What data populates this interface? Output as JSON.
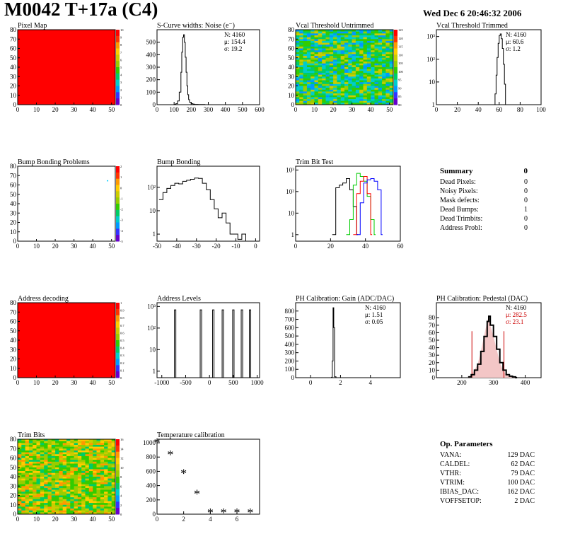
{
  "header": {
    "title": "M0042 T+17a (C4)",
    "date": "Wed Dec  6 20:46:32 2006"
  },
  "colors": {
    "map_red": "#ff0000",
    "hist_line": "#000000",
    "green_trim": "#00cc00",
    "blue_trim": "#0000ff",
    "red_trim": "#ff0000",
    "gain_mean_red": "#cc0000"
  },
  "chart_data": [
    {
      "id": "pixel-map",
      "type": "heatmap",
      "title": "Pixel Map",
      "xlim": [
        0,
        52
      ],
      "ylim": [
        0,
        80
      ],
      "xticks": [
        "0",
        "10",
        "20",
        "30",
        "40",
        "50"
      ],
      "yticks": [
        "0",
        "10",
        "20",
        "30",
        "40",
        "50",
        "60",
        "70",
        "80"
      ],
      "zticks": [
        "0",
        "1",
        "2",
        "3",
        "4",
        "5",
        "6",
        "7",
        "8",
        "9",
        "10"
      ],
      "fill": "uniform-max"
    },
    {
      "id": "scurve-noise",
      "type": "line",
      "title": "S-Curve widths: Noise (e⁻)",
      "xlim": [
        0,
        600
      ],
      "ylim": [
        0,
        600
      ],
      "xticks": [
        "0",
        "100",
        "200",
        "300",
        "400",
        "500",
        "600"
      ],
      "yticks": [
        "0",
        "100",
        "200",
        "300",
        "400",
        "500"
      ],
      "stats": [
        "N: 4160",
        "μ: 154.4",
        "σ: 19.2"
      ],
      "x": [
        80,
        100,
        110,
        120,
        130,
        140,
        145,
        150,
        155,
        160,
        165,
        170,
        175,
        180,
        185,
        190,
        200,
        210,
        220,
        240,
        260,
        280
      ],
      "y": [
        0,
        2,
        8,
        30,
        100,
        260,
        420,
        540,
        560,
        500,
        380,
        260,
        150,
        80,
        40,
        20,
        8,
        4,
        2,
        1,
        1,
        0
      ]
    },
    {
      "id": "vcal-untrimmed",
      "type": "heatmap",
      "title": "Vcal Threshold Untrimmed",
      "xlim": [
        0,
        52
      ],
      "ylim": [
        0,
        80
      ],
      "xticks": [
        "0",
        "10",
        "20",
        "30",
        "40",
        "50"
      ],
      "yticks": [
        "0",
        "10",
        "20",
        "30",
        "40",
        "50",
        "60",
        "70",
        "80"
      ],
      "zticks": [
        "80",
        "85",
        "90",
        "95",
        "100",
        "105",
        "110",
        "115",
        "120",
        "125"
      ],
      "fill": "noisy-green-cyan"
    },
    {
      "id": "vcal-trimmed",
      "type": "line",
      "title": "Vcal Threshold Trimmed",
      "yscale": "log",
      "xlim": [
        0,
        100
      ],
      "ylim": [
        1,
        2000
      ],
      "xticks": [
        "0",
        "20",
        "40",
        "60",
        "80",
        "100"
      ],
      "ytick_labels": [
        "1",
        "10",
        "10²",
        "10³"
      ],
      "stats": [
        "N: 4160",
        "μ: 60.6",
        "σ:  1.2"
      ],
      "x": [
        55,
        56,
        57,
        58,
        59,
        60,
        61,
        62,
        63,
        64,
        65,
        66
      ],
      "y": [
        1,
        3,
        20,
        120,
        500,
        1100,
        1300,
        800,
        300,
        60,
        8,
        1
      ]
    },
    {
      "id": "bump-map",
      "type": "heatmap",
      "title": "Bump Bonding Problems",
      "xlim": [
        0,
        52
      ],
      "ylim": [
        0,
        80
      ],
      "xticks": [
        "0",
        "10",
        "20",
        "30",
        "40",
        "50"
      ],
      "yticks": [
        "0",
        "10",
        "20",
        "30",
        "40",
        "50",
        "60",
        "70",
        "80"
      ],
      "zticks": [
        "-5",
        "-4",
        "-3",
        "-2",
        "-1",
        "0",
        "1",
        "2"
      ],
      "fill": "empty",
      "points": [
        [
          46,
          65
        ]
      ]
    },
    {
      "id": "bump-bonding",
      "type": "line",
      "title": "Bump Bonding",
      "yscale": "log",
      "xlim": [
        -50,
        2
      ],
      "ylim": [
        0.5,
        800
      ],
      "xticks": [
        "-50",
        "-40",
        "-30",
        "-20",
        "-10",
        "0"
      ],
      "ytick_labels": [
        "1",
        "10",
        "10²"
      ],
      "x": [
        -49,
        -47,
        -45,
        -43,
        -41,
        -39,
        -37,
        -35,
        -33,
        -31,
        -29,
        -27,
        -25,
        -23,
        -21,
        -19,
        -17,
        -15,
        -13,
        -11,
        -9,
        -7,
        -5
      ],
      "y": [
        30,
        60,
        90,
        120,
        150,
        140,
        180,
        200,
        220,
        250,
        240,
        150,
        80,
        30,
        12,
        5,
        8,
        3,
        1,
        1,
        0.6,
        1,
        0
      ]
    },
    {
      "id": "trim-bit-test",
      "type": "line",
      "title": "Trim Bit Test",
      "yscale": "log",
      "xlim": [
        0,
        60
      ],
      "ylim": [
        0.5,
        1500
      ],
      "xticks": [
        "0",
        "20",
        "40",
        "60"
      ],
      "ytick_labels": [
        "1",
        "10",
        "10²",
        "10³"
      ],
      "series": [
        {
          "color": "#000000",
          "x": [
            21,
            23,
            25,
            27,
            29,
            31,
            33,
            35
          ],
          "y": [
            1,
            150,
            200,
            250,
            400,
            120,
            20,
            1
          ]
        },
        {
          "color": "#00cc00",
          "x": [
            29,
            31,
            33,
            35,
            37,
            39,
            41,
            43,
            45
          ],
          "y": [
            1,
            5,
            200,
            700,
            500,
            300,
            60,
            5,
            1
          ]
        },
        {
          "color": "#ff0000",
          "x": [
            33,
            35,
            37,
            39,
            41,
            43
          ],
          "y": [
            1,
            80,
            300,
            500,
            80,
            1
          ]
        },
        {
          "color": "#0000ff",
          "x": [
            35,
            37,
            39,
            41,
            43,
            45,
            47,
            49
          ],
          "y": [
            1,
            30,
            250,
            350,
            400,
            300,
            120,
            1
          ]
        }
      ]
    },
    {
      "id": "address-map",
      "type": "heatmap",
      "title": "Address decoding",
      "xlim": [
        0,
        52
      ],
      "ylim": [
        0,
        80
      ],
      "xticks": [
        "0",
        "10",
        "20",
        "30",
        "40",
        "50"
      ],
      "yticks": [
        "0",
        "10",
        "20",
        "30",
        "40",
        "50",
        "60",
        "70",
        "80"
      ],
      "zticks": [
        "0",
        "0.1",
        "0.2",
        "0.3",
        "0.4",
        "0.5",
        "0.6",
        "0.7",
        "0.8",
        "0.9",
        "1"
      ],
      "fill": "uniform-max"
    },
    {
      "id": "address-levels",
      "type": "line",
      "title": "Address Levels",
      "yscale": "log",
      "xlim": [
        -1100,
        1050
      ],
      "ylim": [
        0.5,
        1500
      ],
      "xticks": [
        "-1000",
        "-500",
        "0",
        "500",
        "1000"
      ],
      "ytick_labels": [
        "1",
        "10",
        "10²",
        "10³"
      ],
      "peaks": [
        -720,
        -180,
        80,
        280,
        500,
        680,
        850
      ],
      "peak_height": 700
    },
    {
      "id": "ph-gain",
      "type": "line",
      "title": "PH Calibration: Gain (ADC/DAC)",
      "xlim": [
        -1,
        6
      ],
      "ylim": [
        0,
        900
      ],
      "xticks": [
        "0",
        "2",
        "4"
      ],
      "yticks": [
        "0",
        "100",
        "200",
        "300",
        "400",
        "500",
        "600",
        "700",
        "800"
      ],
      "stats": [
        "N: 4160",
        "μ: 1.51",
        "σ: 0.05"
      ],
      "x": [
        1.3,
        1.4,
        1.45,
        1.5,
        1.55,
        1.6,
        1.7
      ],
      "y": [
        0,
        5,
        200,
        840,
        600,
        10,
        0
      ]
    },
    {
      "id": "ph-pedestal",
      "type": "line",
      "title": "PH Calibration: Pedestal (DAC)",
      "xlim": [
        120,
        450
      ],
      "ylim": [
        0,
        100
      ],
      "xticks": [
        "200",
        "300",
        "400"
      ],
      "yticks": [
        "0",
        "10",
        "20",
        "30",
        "40",
        "50",
        "60",
        "70",
        "80"
      ],
      "stats": [
        "N: 4160",
        "μ: 282.5",
        "σ: 23.1"
      ],
      "x": [
        220,
        230,
        240,
        250,
        260,
        270,
        280,
        285,
        290,
        300,
        310,
        320,
        330,
        340,
        350,
        360,
        370
      ],
      "y": [
        1,
        4,
        10,
        18,
        35,
        55,
        75,
        82,
        70,
        55,
        38,
        20,
        10,
        4,
        2,
        1,
        0
      ],
      "cut_lines": [
        232,
        333
      ]
    },
    {
      "id": "trim-bits",
      "type": "heatmap",
      "title": "Trim Bits",
      "xlim": [
        0,
        52
      ],
      "ylim": [
        0,
        80
      ],
      "xticks": [
        "0",
        "10",
        "20",
        "30",
        "40",
        "50"
      ],
      "yticks": [
        "0",
        "10",
        "20",
        "30",
        "40",
        "50",
        "60",
        "70",
        "80"
      ],
      "zticks": [
        "0",
        "2",
        "4",
        "6",
        "8",
        "10",
        "12",
        "14",
        "16"
      ],
      "fill": "noisy-green-yellow"
    },
    {
      "id": "temperature",
      "type": "scatter",
      "title": "Temperature calibration",
      "xlim": [
        0,
        7.7
      ],
      "ylim": [
        0,
        1050
      ],
      "xticks": [
        "0",
        "2",
        "4",
        "6"
      ],
      "yticks": [
        "0",
        "200",
        "400",
        "600",
        "800",
        "1000"
      ],
      "x": [
        0,
        1,
        2,
        3,
        4,
        5,
        6,
        7
      ],
      "y": [
        1000,
        830,
        570,
        280,
        20,
        20,
        20,
        20
      ]
    }
  ],
  "summary": {
    "title": "Summary",
    "value": "0",
    "rows": [
      {
        "label": "Dead Pixels:",
        "value": "0"
      },
      {
        "label": "Noisy Pixels:",
        "value": "0"
      },
      {
        "label": "Mask defects:",
        "value": "0"
      },
      {
        "label": "Dead Bumps:",
        "value": "1"
      },
      {
        "label": "Dead Trimbits:",
        "value": "0"
      },
      {
        "label": "Address Probl:",
        "value": "0"
      }
    ]
  },
  "op_params": {
    "title": "Op. Parameters",
    "rows": [
      {
        "label": "VANA:",
        "value": "129 DAC"
      },
      {
        "label": "CALDEL:",
        "value": "62 DAC"
      },
      {
        "label": "VTHR:",
        "value": "79 DAC"
      },
      {
        "label": "VTRIM:",
        "value": "100 DAC"
      },
      {
        "label": "IBIAS_DAC:",
        "value": "162 DAC"
      },
      {
        "label": "VOFFSETOP:",
        "value": "2 DAC"
      }
    ]
  }
}
